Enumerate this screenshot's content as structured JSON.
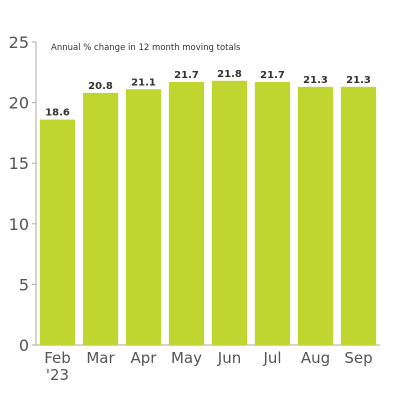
{
  "chart_data": {
    "type": "bar",
    "title": "",
    "annotation": "Annual % change in 12 month moving totals",
    "xlabel": "",
    "ylabel": "",
    "categories": [
      "Feb '23",
      "Mar",
      "Apr",
      "May",
      "Jun",
      "Jul",
      "Aug",
      "Sep"
    ],
    "category_lines": [
      [
        "Feb",
        "'23"
      ],
      [
        "Mar"
      ],
      [
        "Apr"
      ],
      [
        "May"
      ],
      [
        "Jun"
      ],
      [
        "Jul"
      ],
      [
        "Aug"
      ],
      [
        "Sep"
      ]
    ],
    "values": [
      18.6,
      20.8,
      21.1,
      21.7,
      21.8,
      21.7,
      21.3,
      21.3
    ],
    "value_labels": [
      "18.6",
      "20.8",
      "21.1",
      "21.7",
      "21.8",
      "21.7",
      "21.3",
      "21.3"
    ],
    "ylim": [
      0,
      25
    ],
    "yticks": [
      0,
      5,
      10,
      15,
      20,
      25
    ],
    "grid": false,
    "legend": "none",
    "bar_color": "#bed62f",
    "axis_color": "#aaaaaa"
  }
}
